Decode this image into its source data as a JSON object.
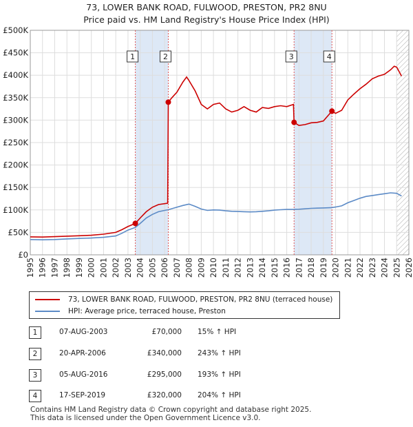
{
  "title_line1": "73, LOWER BANK ROAD, FULWOOD, PRESTON, PR2 8NU",
  "title_line2": "Price paid vs. HM Land Registry's House Price Index (HPI)",
  "colors": {
    "property": "#cc0000",
    "hpi": "#5b8ac6",
    "shade": "#dde8f6",
    "grid": "#dddddd",
    "vline": "#e05555",
    "hatch": "#999999"
  },
  "chart_data": {
    "type": "line",
    "xlim": [
      1995,
      2026
    ],
    "ylim": [
      0,
      500000
    ],
    "yticks": [
      {
        "v": 0,
        "label": "£0"
      },
      {
        "v": 50000,
        "label": "£50K"
      },
      {
        "v": 100000,
        "label": "£100K"
      },
      {
        "v": 150000,
        "label": "£150K"
      },
      {
        "v": 200000,
        "label": "£200K"
      },
      {
        "v": 250000,
        "label": "£250K"
      },
      {
        "v": 300000,
        "label": "£300K"
      },
      {
        "v": 350000,
        "label": "£350K"
      },
      {
        "v": 400000,
        "label": "£400K"
      },
      {
        "v": 450000,
        "label": "£450K"
      },
      {
        "v": 500000,
        "label": "£500K"
      }
    ],
    "xticks": [
      "1995",
      "1996",
      "1997",
      "1998",
      "1999",
      "2000",
      "2001",
      "2002",
      "2003",
      "2004",
      "2005",
      "2006",
      "2007",
      "2008",
      "2009",
      "2010",
      "2011",
      "2012",
      "2013",
      "2014",
      "2015",
      "2016",
      "2017",
      "2018",
      "2019",
      "2020",
      "2021",
      "2022",
      "2023",
      "2024",
      "2025",
      "2026"
    ],
    "shaded_ranges": [
      [
        2003.6,
        2006.3
      ],
      [
        2016.6,
        2019.7
      ]
    ],
    "future_from": 2025.0,
    "series": [
      {
        "name": "73, LOWER BANK ROAD, FULWOOD, PRESTON, PR2 8NU (terraced house)",
        "points": [
          [
            1995,
            40000
          ],
          [
            1996,
            39500
          ],
          [
            1997,
            40500
          ],
          [
            1998,
            41500
          ],
          [
            1999,
            42500
          ],
          [
            2000,
            43500
          ],
          [
            2001,
            46000
          ],
          [
            2002,
            50000
          ],
          [
            2002.5,
            56000
          ],
          [
            2003,
            63000
          ],
          [
            2003.6,
            70000
          ],
          [
            2004,
            82000
          ],
          [
            2004.5,
            96000
          ],
          [
            2005,
            106000
          ],
          [
            2005.5,
            112000
          ],
          [
            2006.25,
            115000
          ],
          [
            2006.3,
            340000
          ],
          [
            2006.6,
            350000
          ],
          [
            2007,
            362000
          ],
          [
            2007.5,
            385000
          ],
          [
            2007.8,
            396000
          ],
          [
            2008,
            388000
          ],
          [
            2008.5,
            365000
          ],
          [
            2009,
            335000
          ],
          [
            2009.5,
            325000
          ],
          [
            2010,
            335000
          ],
          [
            2010.5,
            338000
          ],
          [
            2011,
            325000
          ],
          [
            2011.5,
            318000
          ],
          [
            2012,
            322000
          ],
          [
            2012.5,
            330000
          ],
          [
            2013,
            322000
          ],
          [
            2013.5,
            318000
          ],
          [
            2014,
            328000
          ],
          [
            2014.5,
            326000
          ],
          [
            2015,
            330000
          ],
          [
            2015.5,
            332000
          ],
          [
            2016,
            330000
          ],
          [
            2016.55,
            335000
          ],
          [
            2016.6,
            295000
          ],
          [
            2017,
            288000
          ],
          [
            2017.5,
            290000
          ],
          [
            2018,
            294000
          ],
          [
            2018.5,
            295000
          ],
          [
            2019,
            298000
          ],
          [
            2019.7,
            320000
          ],
          [
            2020,
            315000
          ],
          [
            2020.5,
            322000
          ],
          [
            2021,
            345000
          ],
          [
            2021.5,
            358000
          ],
          [
            2022,
            370000
          ],
          [
            2022.5,
            380000
          ],
          [
            2023,
            392000
          ],
          [
            2023.5,
            398000
          ],
          [
            2024,
            402000
          ],
          [
            2024.5,
            412000
          ],
          [
            2024.8,
            420000
          ],
          [
            2025,
            418000
          ],
          [
            2025.4,
            398000
          ]
        ]
      },
      {
        "name": "HPI: Average price, terraced house, Preston",
        "points": [
          [
            1995,
            34000
          ],
          [
            1996,
            33500
          ],
          [
            1997,
            34000
          ],
          [
            1998,
            35500
          ],
          [
            1999,
            36500
          ],
          [
            2000,
            37500
          ],
          [
            2001,
            39000
          ],
          [
            2002,
            42000
          ],
          [
            2002.5,
            48000
          ],
          [
            2003,
            55000
          ],
          [
            2003.6,
            61000
          ],
          [
            2004,
            70000
          ],
          [
            2004.5,
            82000
          ],
          [
            2005,
            90000
          ],
          [
            2005.5,
            96000
          ],
          [
            2006,
            99000
          ],
          [
            2006.3,
            100500
          ],
          [
            2007,
            106000
          ],
          [
            2007.5,
            110000
          ],
          [
            2008,
            113000
          ],
          [
            2008.5,
            108000
          ],
          [
            2009,
            102000
          ],
          [
            2009.5,
            99000
          ],
          [
            2010,
            100000
          ],
          [
            2010.5,
            99500
          ],
          [
            2011,
            98000
          ],
          [
            2011.5,
            97000
          ],
          [
            2012,
            96500
          ],
          [
            2012.5,
            96000
          ],
          [
            2013,
            95500
          ],
          [
            2013.5,
            96000
          ],
          [
            2014,
            97000
          ],
          [
            2014.5,
            98000
          ],
          [
            2015,
            99500
          ],
          [
            2015.5,
            100500
          ],
          [
            2016,
            101000
          ],
          [
            2016.6,
            101000
          ],
          [
            2017,
            101500
          ],
          [
            2017.5,
            102500
          ],
          [
            2018,
            103500
          ],
          [
            2018.5,
            104000
          ],
          [
            2019,
            104500
          ],
          [
            2019.7,
            105200
          ],
          [
            2020,
            106500
          ],
          [
            2020.5,
            109000
          ],
          [
            2021,
            116000
          ],
          [
            2021.5,
            121000
          ],
          [
            2022,
            126000
          ],
          [
            2022.5,
            130000
          ],
          [
            2023,
            132000
          ],
          [
            2023.5,
            134000
          ],
          [
            2024,
            136000
          ],
          [
            2024.5,
            138000
          ],
          [
            2025,
            137000
          ],
          [
            2025.4,
            131000
          ]
        ]
      }
    ],
    "sales": [
      {
        "id": "1",
        "x": 2003.6,
        "y": 70000
      },
      {
        "id": "2",
        "x": 2006.3,
        "y": 340000
      },
      {
        "id": "3",
        "x": 2016.6,
        "y": 295000
      },
      {
        "id": "4",
        "x": 2019.7,
        "y": 320000
      }
    ]
  },
  "legend": {
    "property_label": "73, LOWER BANK ROAD, FULWOOD, PRESTON, PR2 8NU (terraced house)",
    "hpi_label": "HPI: Average price, terraced house, Preston"
  },
  "transactions": [
    {
      "num": "1",
      "date": "07-AUG-2003",
      "price": "£70,000",
      "hpi": "15% ↑ HPI"
    },
    {
      "num": "2",
      "date": "20-APR-2006",
      "price": "£340,000",
      "hpi": "243% ↑ HPI"
    },
    {
      "num": "3",
      "date": "05-AUG-2016",
      "price": "£295,000",
      "hpi": "193% ↑ HPI"
    },
    {
      "num": "4",
      "date": "17-SEP-2019",
      "price": "£320,000",
      "hpi": "204% ↑ HPI"
    }
  ],
  "footer_line1": "Contains HM Land Registry data © Crown copyright and database right 2025.",
  "footer_line2": "This data is licensed under the Open Government Licence v3.0."
}
